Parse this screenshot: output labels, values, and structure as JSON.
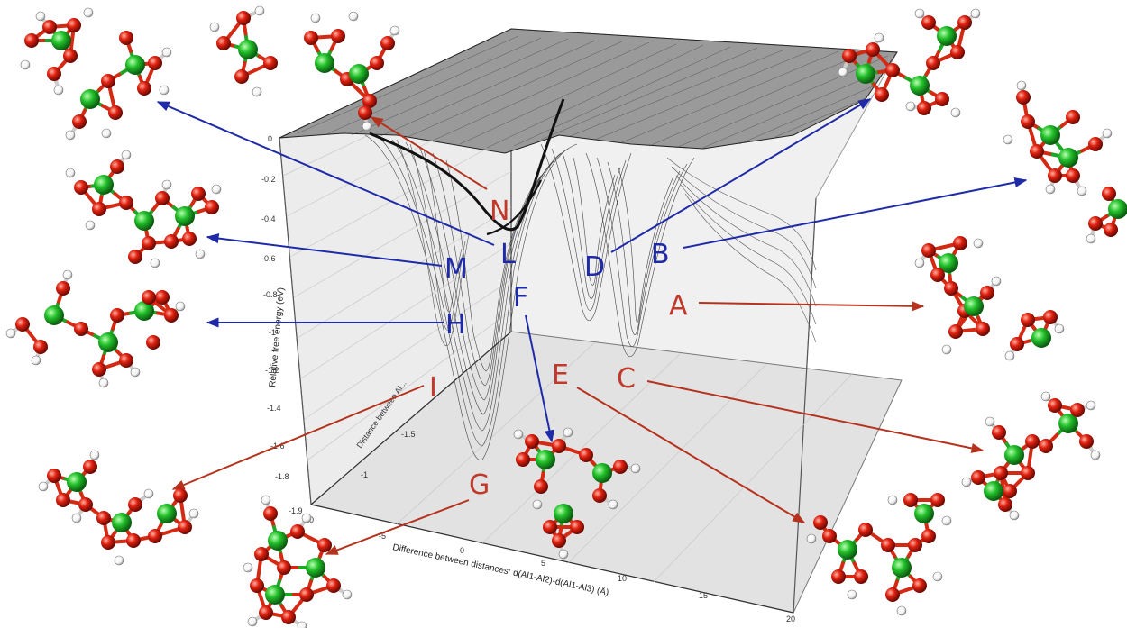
{
  "figure": {
    "y_axis_title": "Relative free energy (eV)",
    "x_axis_title": "Difference between distances: d(Al1-Al2)-d(Al1-Al3) (Å)",
    "depth_axis_title": "Distance between Al...",
    "y_ticks": [
      "0",
      "-0.2",
      "-0.4",
      "-0.6",
      "-0.8",
      "-1",
      "-1.2",
      "-1.4",
      "-1.6",
      "-1.8",
      "-1.9"
    ],
    "x_ticks": [
      "-10",
      "-5",
      "0",
      "5",
      "10",
      "15",
      "20"
    ],
    "depth_ticks": [
      "-1",
      "-1.5"
    ],
    "colors": {
      "red_label": "#c0392b",
      "blue_label": "#1f2aa8",
      "aluminum_atom": "#22c02a",
      "oxygen_atom": "#e0200f",
      "hydrogen_atom": "#ffffff"
    },
    "labels": [
      {
        "id": "N",
        "color": "red"
      },
      {
        "id": "L",
        "color": "blue"
      },
      {
        "id": "D",
        "color": "blue"
      },
      {
        "id": "B",
        "color": "blue"
      },
      {
        "id": "M",
        "color": "blue"
      },
      {
        "id": "A",
        "color": "red"
      },
      {
        "id": "F",
        "color": "blue"
      },
      {
        "id": "H",
        "color": "blue"
      },
      {
        "id": "E",
        "color": "red"
      },
      {
        "id": "C",
        "color": "red"
      },
      {
        "id": "I",
        "color": "red"
      },
      {
        "id": "G",
        "color": "red"
      }
    ]
  }
}
